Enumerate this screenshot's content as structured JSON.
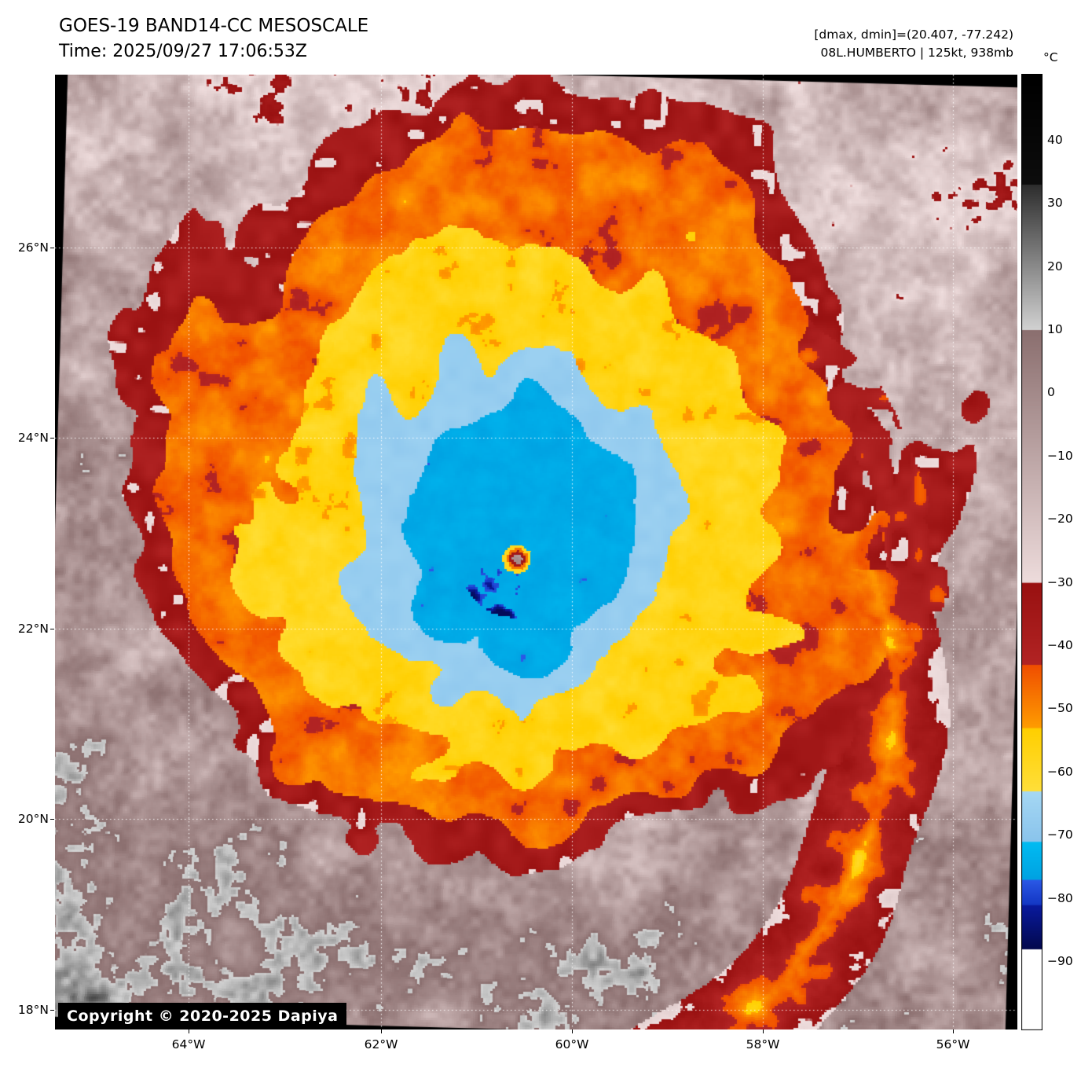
{
  "header": {
    "title": "GOES-19 BAND14-CC MESOSCALE",
    "time": "Time: 2025/09/27 17:06:53Z",
    "dmax_dmin": "[dmax, dmin]=(20.407, -77.242)",
    "storm": "08L.HUMBERTO | 125kt, 938mb"
  },
  "colorbar": {
    "unit": "°C",
    "ticks": [
      "40",
      "30",
      "20",
      "10",
      "0",
      "−10",
      "−20",
      "−30",
      "−40",
      "−50",
      "−60",
      "−70",
      "−80",
      "−90"
    ],
    "palette_stops": [
      {
        "t": 50,
        "c": "#000000"
      },
      {
        "t": 33,
        "c": "#0d0d0d"
      },
      {
        "t": 32.9,
        "c": "#2e2e2e"
      },
      {
        "t": 10,
        "c": "#d2d2d2"
      },
      {
        "t": 9.9,
        "c": "#8b6f6f"
      },
      {
        "t": -30,
        "c": "#eedcdc"
      },
      {
        "t": -30.1,
        "c": "#991111"
      },
      {
        "t": -43,
        "c": "#b22424"
      },
      {
        "t": -43.1,
        "c": "#f04f00"
      },
      {
        "t": -53,
        "c": "#ff9d00"
      },
      {
        "t": -53.1,
        "c": "#ffcf00"
      },
      {
        "t": -63,
        "c": "#ffdf3a"
      },
      {
        "t": -63.1,
        "c": "#a6d8f4"
      },
      {
        "t": -71,
        "c": "#8ac4ec"
      },
      {
        "t": -71.1,
        "c": "#00bcf2"
      },
      {
        "t": -77,
        "c": "#00a2e2"
      },
      {
        "t": -77.1,
        "c": "#2b59e6"
      },
      {
        "t": -81,
        "c": "#1437c4"
      },
      {
        "t": -81.1,
        "c": "#0a1a9e"
      },
      {
        "t": -88,
        "c": "#03094e"
      },
      {
        "t": -88.1,
        "c": "#ffffff"
      },
      {
        "t": -101,
        "c": "#ffffff"
      }
    ]
  },
  "axes": {
    "lat_labels": [
      "26°N",
      "24°N",
      "22°N",
      "20°N",
      "18°N"
    ],
    "lon_labels": [
      "64°W",
      "62°W",
      "60°W",
      "58°W",
      "56°W"
    ]
  },
  "copyright": "Copyright © 2020-2025 Dapiya"
}
